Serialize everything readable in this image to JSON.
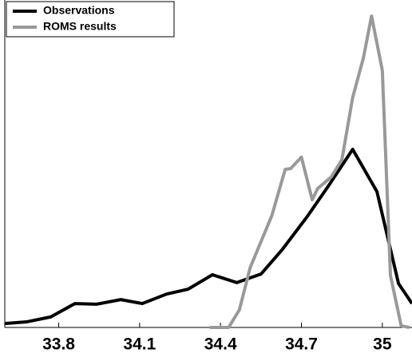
{
  "chart_data": {
    "type": "line",
    "series": [
      {
        "name": "Observations",
        "color": "#000000",
        "x": [
          33.6,
          33.68,
          33.77,
          33.86,
          33.94,
          34.03,
          34.11,
          34.2,
          34.28,
          34.37,
          34.46,
          34.55,
          34.63,
          34.72,
          34.8,
          34.89,
          34.98,
          35.06,
          35.11
        ],
        "values": [
          1.2,
          1.7,
          3.2,
          7.3,
          7.1,
          8.5,
          7.3,
          10.2,
          11.7,
          16.1,
          13.7,
          16.3,
          23.9,
          33.7,
          43.2,
          54.4,
          41.5,
          13.4,
          7.3
        ]
      },
      {
        "name": "ROMS results",
        "color": "#999999",
        "x": [
          34.36,
          34.43,
          34.47,
          34.51,
          34.59,
          34.64,
          34.66,
          34.7,
          34.74,
          34.76,
          34.81,
          34.85,
          34.89,
          34.93,
          34.96,
          35.0,
          35.03,
          35.07,
          35.1
        ],
        "values": [
          0,
          0,
          5.4,
          18.3,
          34.1,
          48.3,
          48.5,
          52,
          39,
          42.4,
          45.9,
          51.2,
          70.2,
          82.4,
          95.1,
          78.5,
          15.9,
          0.5,
          0
        ]
      }
    ],
    "xlim": [
      33.6,
      35.11
    ],
    "ylim": [
      0,
      100
    ],
    "xticks": [
      33.8,
      34.1,
      34.4,
      34.7,
      35
    ],
    "legend": "upper-left"
  }
}
